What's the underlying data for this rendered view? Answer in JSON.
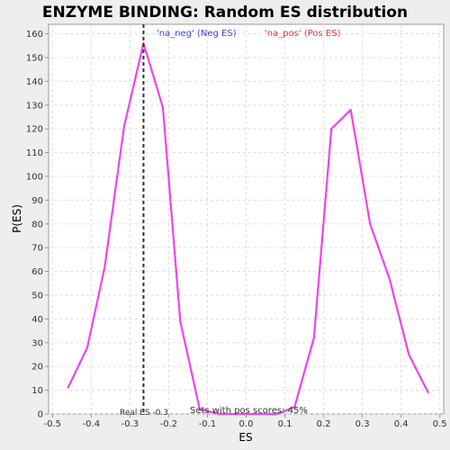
{
  "chart_data": {
    "type": "line",
    "title": "ENZYME BINDING: Random ES distribution",
    "xlabel": "ES",
    "ylabel": "P(ES)",
    "xlim": [
      -0.51,
      0.51
    ],
    "ylim": [
      0,
      164
    ],
    "x_ticks": [
      -0.5,
      -0.4,
      -0.3,
      -0.2,
      -0.1,
      0.0,
      0.1,
      0.2,
      0.3,
      0.4,
      0.5
    ],
    "x_tick_labels": [
      "-0.5",
      "-0.4",
      "-0.3",
      "-0.2",
      "-0.1",
      "0.0",
      "0.1",
      "0.2",
      "0.3",
      "0.4",
      "0.5"
    ],
    "y_ticks": [
      0,
      10,
      20,
      30,
      40,
      50,
      60,
      70,
      80,
      90,
      100,
      110,
      120,
      130,
      140,
      150,
      160
    ],
    "grid": true,
    "series": [
      {
        "name": "",
        "color": "#ee44ee",
        "x": [
          -0.46,
          -0.41,
          -0.365,
          -0.315,
          -0.265,
          -0.215,
          -0.17,
          -0.12,
          -0.07,
          0.0,
          0.08,
          0.125,
          0.175,
          0.22,
          0.27,
          0.32,
          0.37,
          0.42,
          0.47
        ],
        "y": [
          11,
          28,
          62,
          121,
          156,
          129,
          39,
          2,
          0,
          0,
          0,
          3,
          32,
          120,
          128,
          80,
          57,
          25,
          9
        ]
      }
    ],
    "legend": [
      {
        "label": "'na_neg' (Neg ES)",
        "color": "#4040e8"
      },
      {
        "label": "'na_pos' (Pos ES)",
        "color": "#ee3333"
      }
    ],
    "real_es": {
      "x": -0.265,
      "label": "Real ES -0.3",
      "color": "#333333"
    },
    "annotation": "Sets with pos scores: 45%",
    "colors": {
      "background": "#eeeeee",
      "plot_background": "#ffffff",
      "grid": "#dddddd",
      "axis": "#999999",
      "text": "#333333"
    }
  }
}
